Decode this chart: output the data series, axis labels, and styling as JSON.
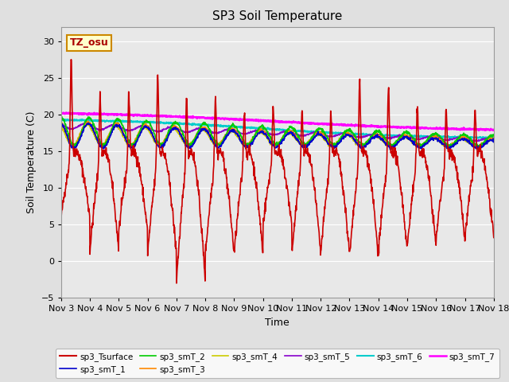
{
  "title": "SP3 Soil Temperature",
  "ylabel": "Soil Temperature (C)",
  "xlabel": "Time",
  "tz_label": "TZ_osu",
  "x_ticks": [
    "Nov 3",
    "Nov 4",
    "Nov 5",
    "Nov 6",
    "Nov 7",
    "Nov 8",
    "Nov 9",
    "Nov 10",
    "Nov 11",
    "Nov 12",
    "Nov 13",
    "Nov 14",
    "Nov 15",
    "Nov 16",
    "Nov 17",
    "Nov 18"
  ],
  "ylim": [
    -5,
    32
  ],
  "yticks": [
    -5,
    0,
    5,
    10,
    15,
    20,
    25,
    30
  ],
  "series": {
    "sp3_Tsurface": {
      "color": "#cc0000",
      "linewidth": 1.2
    },
    "sp3_smT_1": {
      "color": "#0000cc",
      "linewidth": 1.2
    },
    "sp3_smT_2": {
      "color": "#00cc00",
      "linewidth": 1.2
    },
    "sp3_smT_3": {
      "color": "#ff8800",
      "linewidth": 1.2
    },
    "sp3_smT_4": {
      "color": "#cccc00",
      "linewidth": 1.2
    },
    "sp3_smT_5": {
      "color": "#8800cc",
      "linewidth": 1.2
    },
    "sp3_smT_6": {
      "color": "#00cccc",
      "linewidth": 1.5
    },
    "sp3_smT_7": {
      "color": "#ff00ff",
      "linewidth": 1.8
    }
  },
  "bg_color": "#e0e0e0",
  "plot_bg_color": "#e8e8e8"
}
